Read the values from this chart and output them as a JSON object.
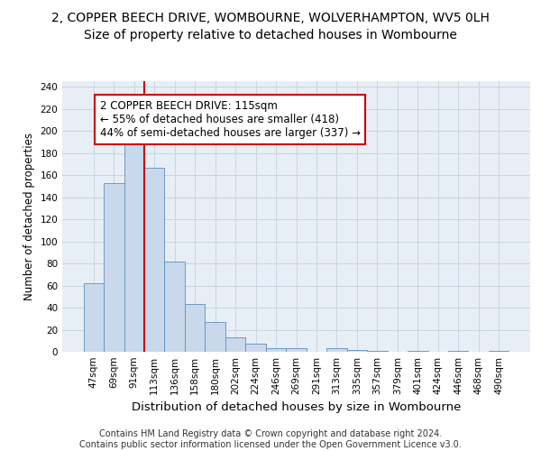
{
  "title1": "2, COPPER BEECH DRIVE, WOMBOURNE, WOLVERHAMPTON, WV5 0LH",
  "title2": "Size of property relative to detached houses in Wombourne",
  "xlabel": "Distribution of detached houses by size in Wombourne",
  "ylabel": "Number of detached properties",
  "categories": [
    "47sqm",
    "69sqm",
    "91sqm",
    "113sqm",
    "136sqm",
    "158sqm",
    "180sqm",
    "202sqm",
    "224sqm",
    "246sqm",
    "269sqm",
    "291sqm",
    "313sqm",
    "335sqm",
    "357sqm",
    "379sqm",
    "401sqm",
    "424sqm",
    "446sqm",
    "468sqm",
    "490sqm"
  ],
  "values": [
    62,
    153,
    192,
    167,
    82,
    43,
    27,
    13,
    7,
    3,
    3,
    0,
    3,
    2,
    1,
    0,
    1,
    0,
    1,
    0,
    1
  ],
  "bar_color": "#c9d9eb",
  "bar_edge_color": "#5a8fc0",
  "vline_color": "#cc0000",
  "vline_x": 2.5,
  "annotation_text": "2 COPPER BEECH DRIVE: 115sqm\n← 55% of detached houses are smaller (418)\n44% of semi-detached houses are larger (337) →",
  "annotation_box_color": "white",
  "annotation_box_edge": "#cc0000",
  "footer": "Contains HM Land Registry data © Crown copyright and database right 2024.\nContains public sector information licensed under the Open Government Licence v3.0.",
  "ylim": [
    0,
    245
  ],
  "yticks": [
    0,
    20,
    40,
    60,
    80,
    100,
    120,
    140,
    160,
    180,
    200,
    220,
    240
  ],
  "grid_color": "#c8d4e0",
  "bg_color": "#e8eef5",
  "fig_bg": "#ffffff",
  "title1_fontsize": 10,
  "title2_fontsize": 10,
  "xlabel_fontsize": 9.5,
  "ylabel_fontsize": 8.5,
  "tick_fontsize": 7.5,
  "annotation_fontsize": 8.5,
  "footer_fontsize": 7
}
